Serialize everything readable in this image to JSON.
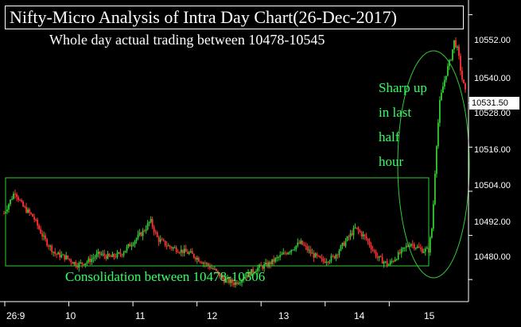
{
  "chart_data": {
    "type": "candlestick",
    "title": "Nifty-Micro Analysis of Intra Day Chart(26-Dec-2017)",
    "subtitle": "Whole day actual trading between 10478-10545",
    "annotations": {
      "sharp_up": [
        "Sharp up",
        "in last",
        "half",
        "hour"
      ],
      "consolidation": "Consolidation between 10478-10506"
    },
    "last_price": "10531.50",
    "y_ticks": [
      "10552.00",
      "10540.00",
      "10528.00",
      "10516.00",
      "10504.00",
      "10492.00",
      "10480.00"
    ],
    "x_ticks": [
      "26:9",
      "10",
      "11",
      "12",
      "13",
      "14",
      "15"
    ],
    "ylim": [
      10474,
      10556
    ],
    "consolidation_range": [
      10478,
      10506
    ],
    "price_path": [
      [
        0,
        10498
      ],
      [
        3,
        10504
      ],
      [
        5,
        10500
      ],
      [
        8,
        10497
      ],
      [
        11,
        10491
      ],
      [
        14,
        10487
      ],
      [
        17,
        10486
      ],
      [
        20,
        10484
      ],
      [
        23,
        10485
      ],
      [
        26,
        10487
      ],
      [
        29,
        10486
      ],
      [
        32,
        10487
      ],
      [
        35,
        10490
      ],
      [
        38,
        10493
      ],
      [
        40,
        10496
      ],
      [
        42,
        10491
      ],
      [
        45,
        10489
      ],
      [
        48,
        10488
      ],
      [
        51,
        10487
      ],
      [
        54,
        10485
      ],
      [
        57,
        10483
      ],
      [
        60,
        10480
      ],
      [
        63,
        10479
      ],
      [
        66,
        10481
      ],
      [
        69,
        10483
      ],
      [
        72,
        10484
      ],
      [
        75,
        10486
      ],
      [
        78,
        10488
      ],
      [
        81,
        10490
      ],
      [
        84,
        10487
      ],
      [
        87,
        10485
      ],
      [
        90,
        10486
      ],
      [
        93,
        10490
      ],
      [
        96,
        10494
      ],
      [
        99,
        10491
      ],
      [
        102,
        10486
      ],
      [
        105,
        10484
      ],
      [
        108,
        10487
      ],
      [
        111,
        10490
      ],
      [
        114,
        10488
      ],
      [
        116,
        10488
      ],
      [
        117,
        10495
      ],
      [
        118,
        10515
      ],
      [
        119,
        10528
      ],
      [
        120,
        10533
      ],
      [
        121,
        10537
      ],
      [
        122,
        10540
      ],
      [
        123,
        10545
      ],
      [
        124,
        10542
      ],
      [
        125,
        10535
      ],
      [
        126,
        10531
      ]
    ],
    "x_tick_pos": [
      0,
      17.5,
      35,
      52.5,
      70,
      87.5,
      105
    ],
    "colors": {
      "up": "#33cc33",
      "down": "#ff3333",
      "annotation": "#33ff66"
    }
  }
}
